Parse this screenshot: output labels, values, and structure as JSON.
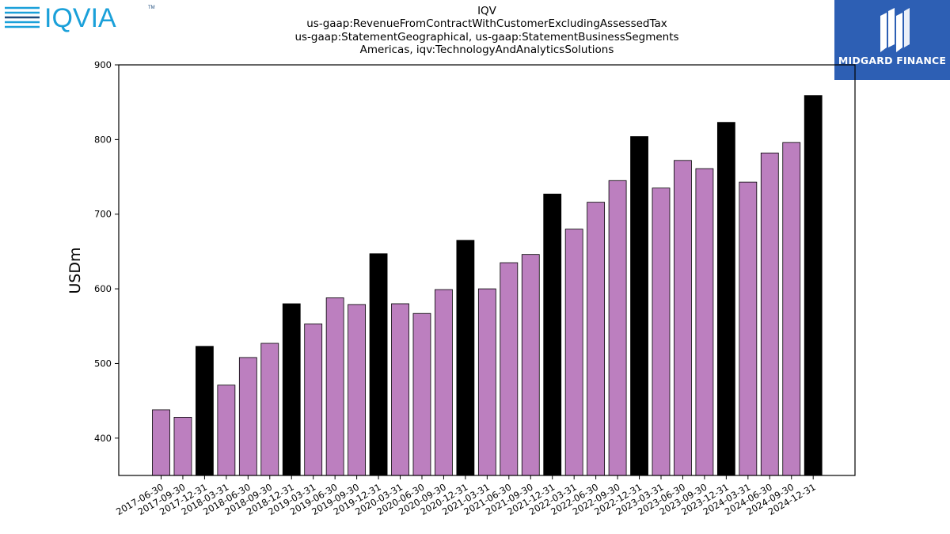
{
  "logos": {
    "left_text": "IQVIA",
    "left_tm": "TM",
    "right_text": "MIDGARD FINANCE"
  },
  "colors": {
    "bar_default": "#bc7fbf",
    "bar_year_end": "#000000",
    "iqvia_blue": "#1aa0d9",
    "iqvia_navy": "#1c4a7c",
    "midgard_bg": "#2d5fb4"
  },
  "chart_data": {
    "type": "bar",
    "title_lines": [
      "IQV",
      "us-gaap:RevenueFromContractWithCustomerExcludingAssessedTax",
      "us-gaap:StatementGeographical, us-gaap:StatementBusinessSegments",
      "Americas, iqv:TechnologyAndAnalyticsSolutions"
    ],
    "xlabel": "",
    "ylabel": "USDm",
    "ylim": [
      350,
      900
    ],
    "yticks": [
      400,
      500,
      600,
      700,
      800,
      900
    ],
    "grid": false,
    "categories": [
      "2017-06-30",
      "2017-09-30",
      "2017-12-31",
      "2018-03-31",
      "2018-06-30",
      "2018-09-30",
      "2018-12-31",
      "2019-03-31",
      "2019-06-30",
      "2019-09-30",
      "2019-12-31",
      "2020-03-31",
      "2020-06-30",
      "2020-09-30",
      "2020-12-31",
      "2021-03-31",
      "2021-06-30",
      "2021-09-30",
      "2021-12-31",
      "2022-03-31",
      "2022-06-30",
      "2022-09-30",
      "2022-12-31",
      "2023-03-31",
      "2023-06-30",
      "2023-09-30",
      "2023-12-31",
      "2024-03-31",
      "2024-06-30",
      "2024-09-30",
      "2024-12-31"
    ],
    "values": [
      438,
      428,
      523,
      471,
      508,
      527,
      580,
      553,
      588,
      579,
      647,
      580,
      567,
      599,
      665,
      600,
      635,
      646,
      727,
      680,
      716,
      745,
      804,
      735,
      772,
      761,
      823,
      743,
      782,
      796,
      859
    ],
    "year_end_highlight": [
      false,
      false,
      true,
      false,
      false,
      false,
      true,
      false,
      false,
      false,
      true,
      false,
      false,
      false,
      true,
      false,
      false,
      false,
      true,
      false,
      false,
      false,
      true,
      false,
      false,
      false,
      true,
      false,
      false,
      false,
      true
    ]
  }
}
